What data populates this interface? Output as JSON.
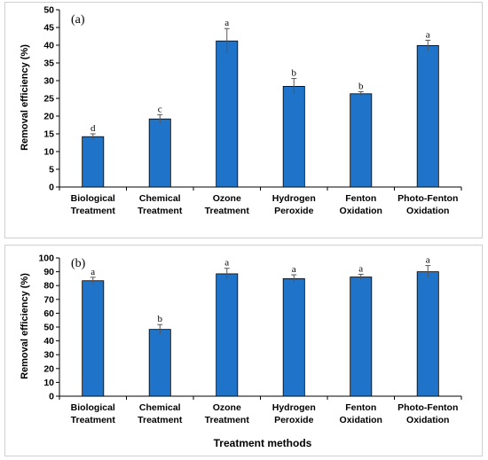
{
  "chart_data": [
    {
      "type": "bar",
      "panel_label": "(a)",
      "ylabel": "Removal efficiency (%)",
      "xlabel": "",
      "ylim": [
        0,
        50
      ],
      "ytick_step": 5,
      "categories": [
        "Biological Treatment",
        "Chemical Treatment",
        "Ozone Treatment",
        "Hydrogen Peroxide",
        "Fenton Oxidation",
        "Photo-Fenton Oxidation"
      ],
      "values": [
        14.2,
        19.2,
        41.2,
        28.4,
        26.3,
        39.9
      ],
      "errors": [
        0.8,
        1.2,
        3.5,
        2.2,
        0.6,
        1.5
      ],
      "letters": [
        "d",
        "c",
        "a",
        "b",
        "b",
        "a"
      ],
      "bar_color": "#1f73c9",
      "grid": false
    },
    {
      "type": "bar",
      "panel_label": "(b)",
      "ylabel": "Removal efficiency (%)",
      "xlabel": "Treatment methods",
      "ylim": [
        0,
        100
      ],
      "ytick_step": 10,
      "categories": [
        "Biological Treatment",
        "Chemical Treatment",
        "Ozone Treatment",
        "Hydrogen Peroxide",
        "Fenton Oxidation",
        "Photo-Fenton Oxidation"
      ],
      "values": [
        83.5,
        48.3,
        88.5,
        85.0,
        86.2,
        90.0
      ],
      "errors": [
        2.5,
        3.5,
        4.0,
        2.8,
        2.0,
        4.5
      ],
      "letters": [
        "a",
        "b",
        "a",
        "a",
        "a",
        "a"
      ],
      "bar_color": "#1f73c9",
      "grid": false
    }
  ]
}
